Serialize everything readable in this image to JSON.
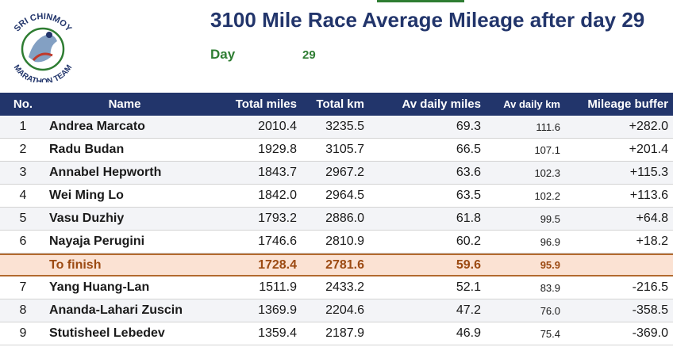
{
  "logo": {
    "top_text": "SRI CHINMOY",
    "bottom_text": "MARATHON TEAM"
  },
  "title": "3100 Mile Race Average Mileage after day 29",
  "day": {
    "label": "Day",
    "value": "29"
  },
  "colors": {
    "header_bg": "#22356b",
    "title": "#22356b",
    "green": "#2e7d32",
    "finish_bg": "#fbe2d3",
    "finish_text": "#9c4a12"
  },
  "table": {
    "headers": {
      "no": "No.",
      "name": "Name",
      "total_miles": "Total miles",
      "total_km": "Total km",
      "av_daily_miles": "Av daily miles",
      "av_daily_km": "Av daily km",
      "mileage_buffer": "Mileage buffer"
    },
    "rows_top": [
      {
        "no": "1",
        "name": "Andrea Marcato",
        "total_miles": "2010.4",
        "total_km": "3235.5",
        "av_daily_miles": "69.3",
        "av_daily_km": "111.6",
        "mileage_buffer": "+282.0"
      },
      {
        "no": "2",
        "name": "Radu Budan",
        "total_miles": "1929.8",
        "total_km": "3105.7",
        "av_daily_miles": "66.5",
        "av_daily_km": "107.1",
        "mileage_buffer": "+201.4"
      },
      {
        "no": "3",
        "name": "Annabel Hepworth",
        "total_miles": "1843.7",
        "total_km": "2967.2",
        "av_daily_miles": "63.6",
        "av_daily_km": "102.3",
        "mileage_buffer": "+115.3"
      },
      {
        "no": "4",
        "name": "Wei Ming Lo",
        "total_miles": "1842.0",
        "total_km": "2964.5",
        "av_daily_miles": "63.5",
        "av_daily_km": "102.2",
        "mileage_buffer": "+113.6"
      },
      {
        "no": "5",
        "name": "Vasu Duzhiy",
        "total_miles": "1793.2",
        "total_km": "2886.0",
        "av_daily_miles": "61.8",
        "av_daily_km": "99.5",
        "mileage_buffer": "+64.8"
      },
      {
        "no": "6",
        "name": "Nayaja Perugini",
        "total_miles": "1746.6",
        "total_km": "2810.9",
        "av_daily_miles": "60.2",
        "av_daily_km": "96.9",
        "mileage_buffer": "+18.2"
      }
    ],
    "finish_row": {
      "name": "To finish",
      "total_miles": "1728.4",
      "total_km": "2781.6",
      "av_daily_miles": "59.6",
      "av_daily_km": "95.9"
    },
    "rows_bottom": [
      {
        "no": "7",
        "name": "Yang Huang-Lan",
        "total_miles": "1511.9",
        "total_km": "2433.2",
        "av_daily_miles": "52.1",
        "av_daily_km": "83.9",
        "mileage_buffer": "-216.5"
      },
      {
        "no": "8",
        "name": "Ananda-Lahari Zuscin",
        "total_miles": "1369.9",
        "total_km": "2204.6",
        "av_daily_miles": "47.2",
        "av_daily_km": "76.0",
        "mileage_buffer": "-358.5"
      },
      {
        "no": "9",
        "name": "Stutisheel Lebedev",
        "total_miles": "1359.4",
        "total_km": "2187.9",
        "av_daily_miles": "46.9",
        "av_daily_km": "75.4",
        "mileage_buffer": "-369.0"
      }
    ]
  }
}
